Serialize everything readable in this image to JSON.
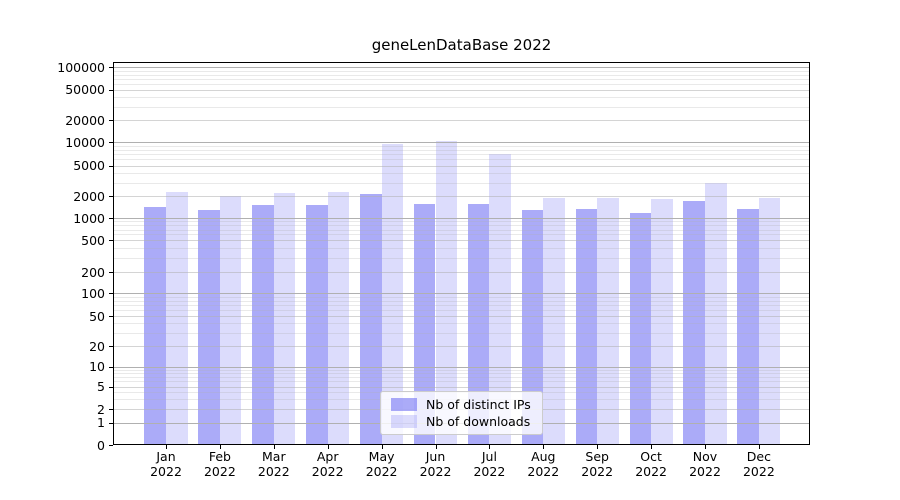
{
  "title": "geneLenDataBase 2022",
  "legend": {
    "items": [
      {
        "label": "Nb of distinct IPs"
      },
      {
        "label": "Nb of downloads"
      }
    ]
  },
  "colors": {
    "bar_base": "#6666f2",
    "ips_bar_alpha": 0.55,
    "downloads_bar_alpha": 0.23,
    "grid_major": "#b0b0b0",
    "axis": "#000000"
  },
  "axes": {
    "y_tick_labels": [
      "0",
      "1",
      "2",
      "5",
      "10",
      "20",
      "50",
      "100",
      "200",
      "500",
      "1000",
      "2000",
      "5000",
      "10000",
      "20000",
      "50000",
      "100000"
    ]
  },
  "chart_data": {
    "type": "bar",
    "title": "geneLenDataBase 2022",
    "categories": [
      "Jan 2022",
      "Feb 2022",
      "Mar 2022",
      "Apr 2022",
      "May 2022",
      "Jun 2022",
      "Jul 2022",
      "Aug 2022",
      "Sep 2022",
      "Oct 2022",
      "Nov 2022",
      "Dec 2022"
    ],
    "series": [
      {
        "name": "Nb of distinct IPs",
        "color": "#6666f2",
        "alpha": 0.55,
        "values": [
          1400,
          1280,
          1500,
          1520,
          2100,
          1570,
          1550,
          1270,
          1320,
          1180,
          1700,
          1340
        ]
      },
      {
        "name": "Nb of downloads",
        "color": "#6666f2",
        "alpha": 0.23,
        "values": [
          2250,
          2030,
          2200,
          2250,
          9500,
          10500,
          7100,
          1900,
          1900,
          1830,
          3000,
          1850
        ]
      }
    ],
    "yscale": "symlog",
    "yticks": [
      0,
      1,
      2,
      5,
      10,
      20,
      50,
      100,
      200,
      500,
      1000,
      2000,
      5000,
      10000,
      20000,
      50000,
      100000
    ],
    "ylim": [
      0,
      120000
    ],
    "grid": true,
    "legend_position": "lower center"
  }
}
